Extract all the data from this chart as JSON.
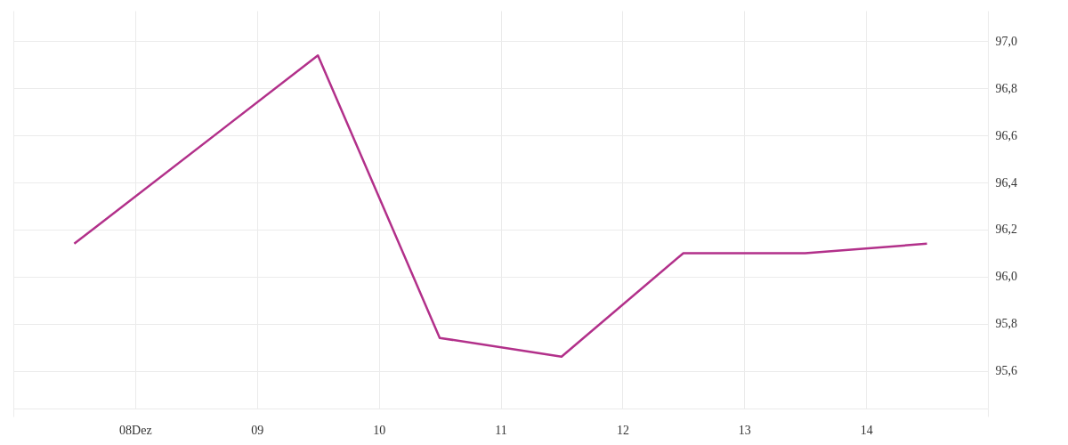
{
  "chart_data": {
    "type": "line",
    "x": [
      "--12-07T12:00",
      "--12-09T12:00",
      "--12-10T12:00",
      "--12-11T12:00",
      "--12-12T12:00",
      "--12-13T12:00",
      "--12-14T12:00"
    ],
    "series": [
      {
        "color": "#b2308a",
        "values": [
          96.14,
          96.94,
          95.74,
          95.66,
          96.1,
          96.1,
          96.14
        ]
      }
    ],
    "xlim": [
      "--12-07",
      "--12-15"
    ],
    "xticks": [
      {
        "value": "--12-07",
        "label": null
      },
      {
        "value": "--12-08",
        "label": "08Dez"
      },
      {
        "value": "--12-09",
        "label": "09"
      },
      {
        "value": "--12-10",
        "label": "10"
      },
      {
        "value": "--12-11",
        "label": "11"
      },
      {
        "value": "--12-12",
        "label": "12"
      },
      {
        "value": "--12-13",
        "label": "13"
      },
      {
        "value": "--12-14",
        "label": "14"
      },
      {
        "value": "--12-15",
        "label": null
      }
    ],
    "ylim": [
      95.44,
      97.13
    ],
    "yticks": [
      {
        "value": 95.6,
        "label": "95,6"
      },
      {
        "value": 95.8,
        "label": "95,8"
      },
      {
        "value": 96.0,
        "label": "96,0"
      },
      {
        "value": 96.2,
        "label": "96,2"
      },
      {
        "value": 96.4,
        "label": "96,4"
      },
      {
        "value": 96.6,
        "label": "96,6"
      },
      {
        "value": 96.8,
        "label": "96,8"
      },
      {
        "value": 97.0,
        "label": "97,0"
      }
    ],
    "grid": true
  }
}
